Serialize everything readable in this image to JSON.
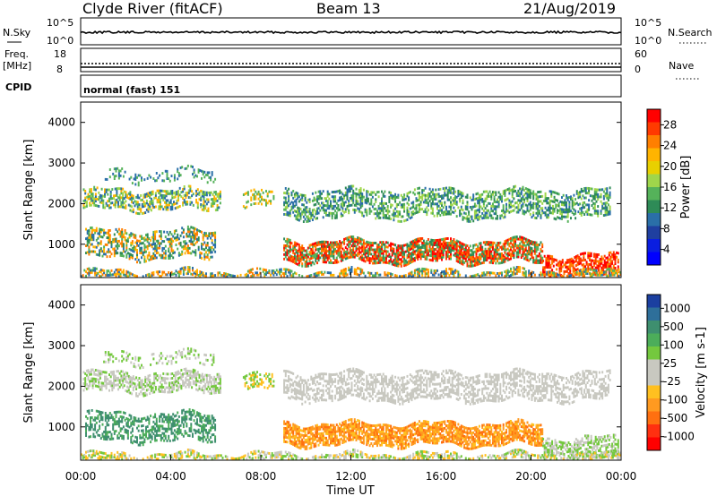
{
  "header": {
    "station": "Clyde River (fitACF)",
    "beam": "Beam 13",
    "date": "21/Aug/2019"
  },
  "strips": {
    "nsky": {
      "label": "N.Sky",
      "left_ticks": [
        "10^5",
        "10^0"
      ]
    },
    "nsearch": {
      "label": "N.Search",
      "right_ticks": [
        "10^5",
        "10^0"
      ]
    },
    "freq": {
      "label_top": "Freq.",
      "label_unit": "[MHz]",
      "left_ticks": [
        "18",
        "8"
      ]
    },
    "nave": {
      "label": "Nave",
      "right_ticks": [
        "60",
        "0"
      ]
    },
    "cpid": {
      "label": "CPID",
      "text": "normal (fast) 151"
    }
  },
  "chart_data": [
    {
      "type": "heatmap",
      "quantity": "Power",
      "ylabel": "Slant Range [km]",
      "colorbar_label": "Power [dB]",
      "ylim": [
        180,
        4500
      ],
      "yticks": [
        1000,
        2000,
        3000,
        4000
      ],
      "xlim": [
        0,
        24
      ],
      "colorbar_ticks": [
        "28",
        "24",
        "20",
        "16",
        "12",
        "8",
        "4"
      ],
      "colorbar_colors": [
        "#ff0000",
        "#ff3a00",
        "#ff7f00",
        "#ffb400",
        "#e8d000",
        "#9fd64b",
        "#55b25a",
        "#2e8b57",
        "#2a6fa8",
        "#1f3fa0",
        "#0a1ee0",
        "#0000ff"
      ]
    },
    {
      "type": "heatmap",
      "quantity": "Velocity",
      "ylabel": "Slant Range [km]",
      "colorbar_label": "Velocity [m s-1]",
      "ylim": [
        180,
        4500
      ],
      "yticks": [
        1000,
        2000,
        3000,
        4000
      ],
      "xlim": [
        0,
        24
      ],
      "colorbar_ticks": [
        "1000",
        "500",
        "100",
        "25",
        "-25",
        "-100",
        "-500",
        "-1000"
      ],
      "colorbar_colors": [
        "#1b3fa0",
        "#2e6f9a",
        "#3e8f6f",
        "#4cad5a",
        "#74c83e",
        "#c8c8c0",
        "#c8c8c0",
        "#ffc020",
        "#ff9a20",
        "#ff7010",
        "#ff3010",
        "#ff0000"
      ]
    }
  ],
  "xaxis": {
    "label": "Time UT",
    "ticks": [
      "00:00",
      "04:00",
      "08:00",
      "12:00",
      "16:00",
      "20:00",
      "00:00"
    ]
  }
}
